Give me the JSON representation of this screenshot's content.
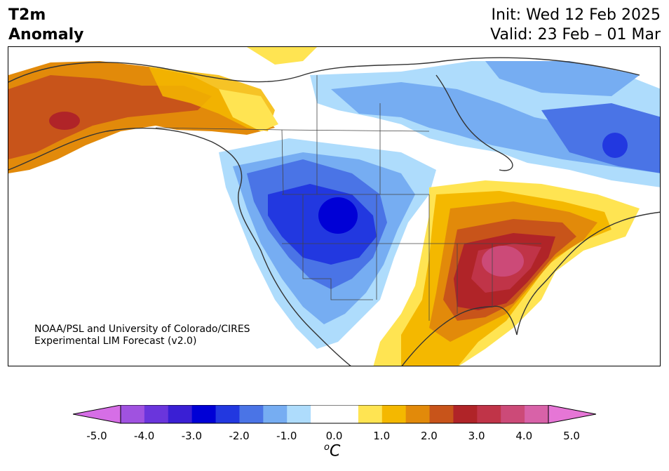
{
  "title": {
    "line1": "T2m",
    "line2": "Anomaly"
  },
  "dates": {
    "init": "Init: Wed 12 Feb 2025",
    "valid": "Valid: 23 Feb – 01 Mar"
  },
  "credit": {
    "line1": "NOAA/PSL and University of Colorado/CIRES",
    "line2": "Experimental LIM Forecast (v2.0)"
  },
  "colorbar": {
    "unit_base": "C",
    "unit_sup": "o",
    "ticks": [
      "-5.0",
      "-4.0",
      "-3.0",
      "-2.0",
      "-1.0",
      "0.0",
      "1.0",
      "2.0",
      "3.0",
      "4.0",
      "5.0"
    ],
    "colors": [
      "#d66ee6",
      "#a052e0",
      "#6a35dc",
      "#3a1fd4",
      "#0000d6",
      "#2238e0",
      "#4a74e6",
      "#76adf2",
      "#aedcfc",
      "#ffffff",
      "#ffffff",
      "#ffe452",
      "#f4b800",
      "#e28a0a",
      "#c8541a",
      "#b02428",
      "#c03448",
      "#cc4a78",
      "#d862a8",
      "#e676d6"
    ]
  }
}
